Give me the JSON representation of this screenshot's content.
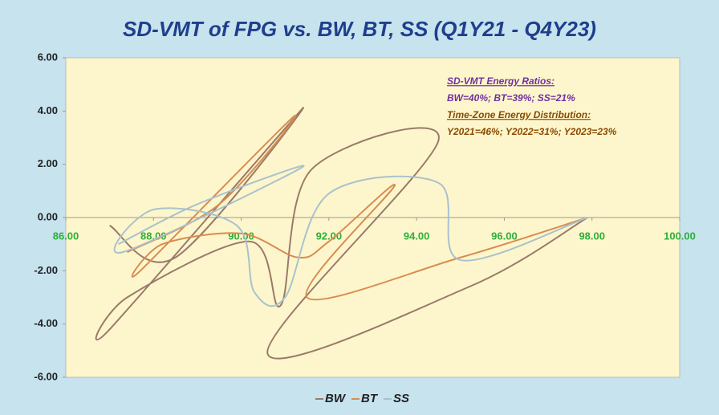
{
  "chart_data": {
    "type": "scatter",
    "smooth": true,
    "title": "SD-VMT of FPG vs. BW, BT, SS  (Q1Y21 - Q4Y23)",
    "annotations": [
      {
        "text": "SD-VMT Energy Ratios:",
        "color": "#7030a0",
        "underline": true
      },
      {
        "text": "BW=40%;  BT=39%;  SS=21%",
        "color": "#7030a0",
        "underline": false
      },
      {
        "text": "Time-Zone Energy Distribution:",
        "color": "#8a4a00",
        "underline": true
      },
      {
        "text": "Y2021=46%;  Y2022=31%;  Y2023=23%",
        "color": "#8a4a00",
        "underline": false
      }
    ],
    "series": [
      {
        "name": "BW",
        "color": "#9a7a6a",
        "x": [
          87.0,
          88.5,
          91.4,
          87.0,
          87.4,
          90.2,
          90.9,
          91.6,
          94.5,
          90.6,
          95.2,
          97.9
        ],
        "values": [
          -0.3,
          -1.5,
          4.1,
          -4.2,
          -3.0,
          -0.9,
          -3.3,
          1.8,
          2.9,
          -5.1,
          -2.6,
          0.0
        ]
      },
      {
        "name": "BT",
        "color": "#d98c50",
        "x": [
          87.4,
          89.5,
          91.2,
          87.7,
          88.2,
          90.0,
          91.3,
          92.0,
          93.5,
          91.5,
          95.0,
          97.9
        ],
        "values": [
          -1.3,
          0.5,
          3.8,
          -2.0,
          -1.0,
          -0.6,
          -1.5,
          -0.9,
          1.2,
          -3.0,
          -1.5,
          0.0
        ]
      },
      {
        "name": "SS",
        "color": "#a9c2cc",
        "x": [
          87.2,
          89.0,
          91.4,
          87.3,
          88.0,
          89.9,
          90.3,
          91.0,
          92.0,
          94.5,
          95.0,
          97.9
        ],
        "values": [
          -1.0,
          0.5,
          1.9,
          -1.3,
          0.3,
          -0.3,
          -2.8,
          -3.0,
          0.9,
          1.3,
          -1.6,
          0.0
        ]
      }
    ],
    "xlim": [
      86,
      100
    ],
    "xticks": [
      {
        "value": 86,
        "label": "86.00"
      },
      {
        "value": 88,
        "label": "88.00"
      },
      {
        "value": 90,
        "label": "90.00"
      },
      {
        "value": 92,
        "label": "92.00"
      },
      {
        "value": 94,
        "label": "94.00"
      },
      {
        "value": 96,
        "label": "96.00"
      },
      {
        "value": 98,
        "label": "98.00"
      },
      {
        "value": 100,
        "label": "100.00"
      }
    ],
    "ylim": [
      -6,
      6
    ],
    "yticks": [
      {
        "value": -6,
        "label": "-6.00"
      },
      {
        "value": -4,
        "label": "-4.00"
      },
      {
        "value": -2,
        "label": "-2.00"
      },
      {
        "value": 0,
        "label": "0.00"
      },
      {
        "value": 2,
        "label": "2.00"
      },
      {
        "value": 4,
        "label": "4.00"
      },
      {
        "value": 6,
        "label": "6.00"
      }
    ],
    "legend": "bottom"
  }
}
